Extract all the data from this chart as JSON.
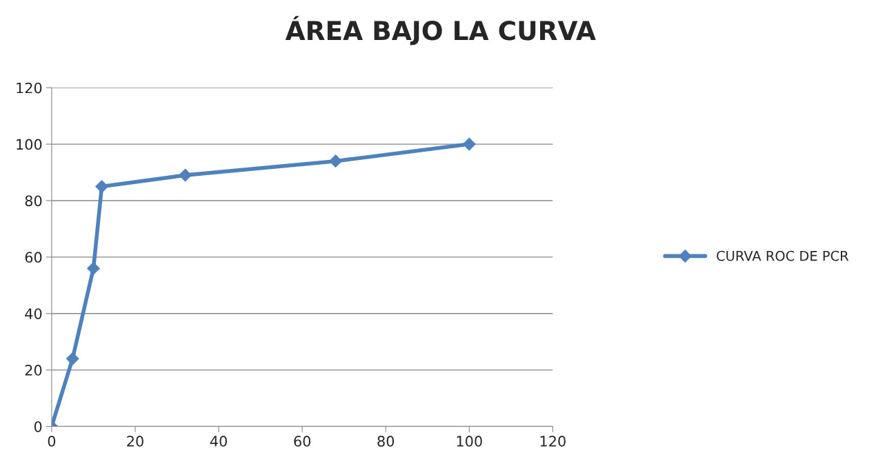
{
  "chart_data": {
    "type": "line",
    "title": "ÁREA BAJO LA CURVA",
    "x": [
      0,
      5,
      10,
      12,
      32,
      68,
      100
    ],
    "series": [
      {
        "name": "CURVA ROC DE PCR",
        "color": "#4f81bd",
        "values": [
          0,
          24,
          56,
          85,
          89,
          94,
          100
        ]
      }
    ],
    "xlim": [
      0,
      120
    ],
    "xticks": [
      0,
      20,
      40,
      60,
      80,
      100,
      120
    ],
    "ylim": [
      0,
      120
    ],
    "yticks": [
      0,
      20,
      40,
      60,
      80,
      100,
      120
    ],
    "grid": "y",
    "legend": "right",
    "marker": "diamond",
    "line_style": "solid"
  }
}
